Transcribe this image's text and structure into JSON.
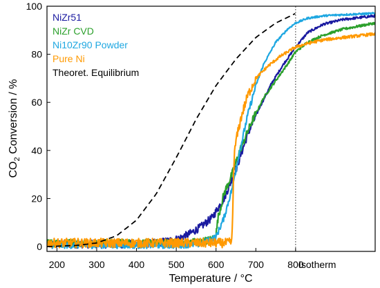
{
  "chart_data": {
    "type": "line",
    "xlabel": "Temperature / °C",
    "ylabel_main": "CO",
    "ylabel_sub": "2",
    "ylabel_rest": " Conversion / %",
    "xlim": [
      175,
      1000
    ],
    "ylim": [
      -2,
      100
    ],
    "x_ticks": [
      200,
      300,
      400,
      500,
      600,
      700,
      800
    ],
    "y_ticks": [
      0,
      20,
      40,
      60,
      80,
      100
    ],
    "isotherm_start": 800,
    "isotherm_label": "Isotherm",
    "legend_position": "top-left",
    "series": [
      {
        "name": "NiZr51",
        "color": "#1a1aa0",
        "style": "solid",
        "noise": 1.0,
        "x": [
          175,
          300,
          400,
          450,
          500,
          530,
          560,
          590,
          620,
          650,
          680,
          710,
          740,
          770,
          800,
          830,
          870,
          920,
          1000
        ],
        "y": [
          1,
          1,
          1,
          1.5,
          3,
          5,
          8,
          12,
          20,
          32,
          47,
          58,
          68,
          76,
          83,
          89,
          92.5,
          94.5,
          96
        ]
      },
      {
        "name": "NiZr CVD",
        "color": "#2ca02c",
        "style": "solid",
        "noise": 1.0,
        "x": [
          175,
          300,
          400,
          500,
          560,
          590,
          600,
          605,
          620,
          640,
          660,
          690,
          720,
          750,
          780,
          800,
          830,
          870,
          920,
          1000
        ],
        "y": [
          1.5,
          1.5,
          1.5,
          1.5,
          2,
          3,
          5,
          12,
          22,
          30,
          40,
          52,
          62,
          69,
          76,
          81,
          85,
          88,
          90.5,
          93
        ]
      },
      {
        "name": "Ni10Zr90 Powder",
        "color": "#1ea7e1",
        "style": "solid",
        "noise": 0.8,
        "x": [
          175,
          300,
          400,
          500,
          560,
          600,
          620,
          640,
          660,
          680,
          700,
          720,
          750,
          780,
          800,
          830,
          870,
          920,
          1000
        ],
        "y": [
          0.5,
          0.5,
          0.5,
          0.5,
          1,
          4,
          12,
          24,
          40,
          55,
          67,
          76,
          85,
          90.5,
          93,
          95,
          96,
          96.5,
          97
        ]
      },
      {
        "name": "Pure Ni",
        "color": "#ff9900",
        "style": "solid",
        "noise": 1.2,
        "x": [
          175,
          300,
          400,
          500,
          600,
          630,
          640,
          645,
          650,
          665,
          680,
          700,
          730,
          760,
          790,
          800,
          830,
          870,
          920,
          1000
        ],
        "y": [
          1.5,
          1.5,
          1.5,
          1.5,
          1.5,
          1.5,
          2,
          36,
          44,
          55,
          63,
          70,
          75,
          79,
          82,
          83,
          84.5,
          86,
          87,
          88.5
        ]
      },
      {
        "name": "Theoret. Equilibrium",
        "color": "#000000",
        "style": "dashed",
        "noise": 0,
        "x": [
          175,
          250,
          300,
          350,
          400,
          450,
          500,
          550,
          600,
          650,
          700,
          750,
          800
        ],
        "y": [
          0,
          0.5,
          1.5,
          4.5,
          11,
          22,
          37,
          53,
          67,
          78,
          87,
          93,
          97
        ]
      }
    ]
  }
}
